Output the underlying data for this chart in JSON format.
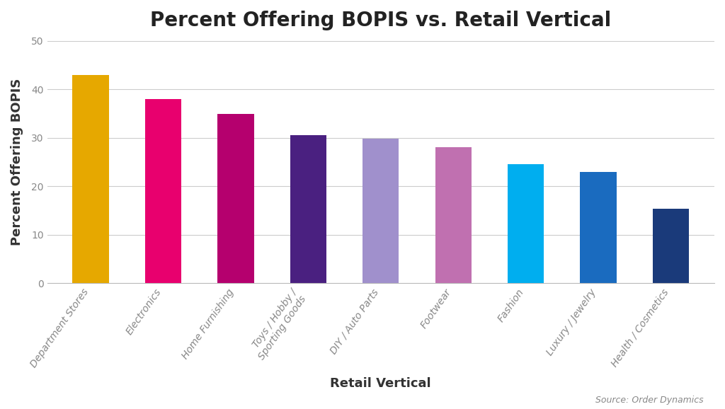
{
  "title": "Percent Offering BOPIS vs. Retail Vertical",
  "xlabel": "Retail Vertical",
  "ylabel": "Percent Offering BOPIS",
  "source": "Source: Order Dynamics",
  "categories": [
    "Department Stores",
    "Electronics",
    "Home Furnishing",
    "Toys / Hobby /\nSporting Goods",
    "DIY / Auto Parts",
    "Footwear",
    "Fashion",
    "Luxury / Jewelry",
    "Health / Cosmetics"
  ],
  "values": [
    43.0,
    38.0,
    35.0,
    30.5,
    29.8,
    28.0,
    24.5,
    23.0,
    15.3
  ],
  "bar_colors": [
    "#E6A800",
    "#E8006E",
    "#B5006E",
    "#4A2080",
    "#A090CC",
    "#C070B0",
    "#00AEEF",
    "#1A6BBF",
    "#1A3A7A"
  ],
  "ylim": [
    0,
    50
  ],
  "yticks": [
    0,
    10,
    20,
    30,
    40,
    50
  ],
  "background_color": "#FFFFFF",
  "title_fontsize": 20,
  "axis_label_fontsize": 13,
  "tick_fontsize": 10,
  "source_fontsize": 9
}
